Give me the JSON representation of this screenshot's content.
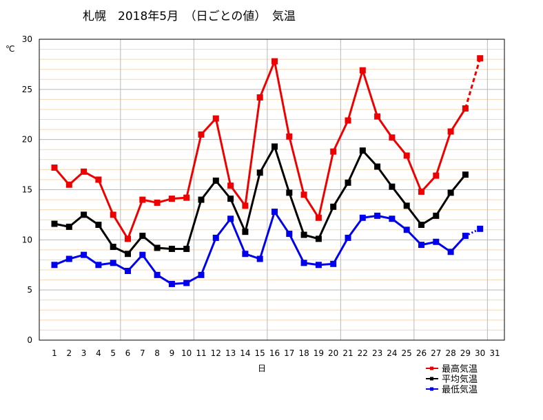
{
  "chart_data": {
    "type": "line",
    "title": "札幌　2018年5月　（日ごとの値）　気温",
    "ylabel": "℃",
    "xlabel": "日",
    "ylim": [
      0,
      30
    ],
    "y_ticks": [
      "0",
      "5",
      "10",
      "15",
      "20",
      "25",
      "30"
    ],
    "categories": [
      "1",
      "2",
      "3",
      "4",
      "5",
      "6",
      "7",
      "8",
      "9",
      "10",
      "11",
      "12",
      "13",
      "14",
      "15",
      "16",
      "17",
      "18",
      "19",
      "20",
      "21",
      "22",
      "23",
      "24",
      "25",
      "26",
      "27",
      "28",
      "29",
      "30",
      "31"
    ],
    "x_ticks": [
      "1",
      "2",
      "3",
      "4",
      "5",
      "6",
      "7",
      "8",
      "9",
      "10",
      "11",
      "12",
      "13",
      "14",
      "15",
      "16",
      "17",
      "18",
      "19",
      "20",
      "21",
      "22",
      "23",
      "24",
      "25",
      "26",
      "27",
      "28",
      "29",
      "30",
      "31"
    ],
    "grid": true,
    "legend_position": "bottom-right",
    "series": [
      {
        "name": "最高気温",
        "color": "#ee0000",
        "values": [
          17.2,
          15.5,
          16.8,
          16.0,
          12.5,
          10.1,
          14.0,
          13.7,
          14.1,
          14.2,
          20.5,
          22.1,
          15.4,
          13.4,
          24.2,
          27.8,
          20.3,
          14.5,
          12.2,
          18.8,
          21.9,
          26.9,
          22.3,
          20.2,
          18.4,
          14.8,
          16.4,
          20.8,
          23.1,
          28.1,
          null
        ],
        "style": "solid",
        "partial_from_index": 29
      },
      {
        "name": "平均気温",
        "color": "#000000",
        "values": [
          11.6,
          11.3,
          12.5,
          11.5,
          9.3,
          8.6,
          10.4,
          9.2,
          9.1,
          9.1,
          14.0,
          15.9,
          14.1,
          10.8,
          16.7,
          19.3,
          14.7,
          10.5,
          10.1,
          13.3,
          15.7,
          18.9,
          17.3,
          15.3,
          13.4,
          11.5,
          12.4,
          14.7,
          16.5,
          null,
          null
        ],
        "style": "solid"
      },
      {
        "name": "最低気温",
        "color": "#0000ee",
        "values": [
          7.5,
          8.1,
          8.5,
          7.5,
          7.7,
          6.9,
          8.5,
          6.5,
          5.6,
          5.7,
          6.5,
          10.2,
          12.1,
          8.6,
          8.1,
          12.8,
          10.6,
          7.7,
          7.5,
          7.6,
          10.2,
          12.2,
          12.4,
          12.1,
          11.0,
          9.5,
          9.8,
          8.8,
          10.4,
          11.1,
          null
        ],
        "style": "solid",
        "partial_from_index": 29
      }
    ]
  }
}
